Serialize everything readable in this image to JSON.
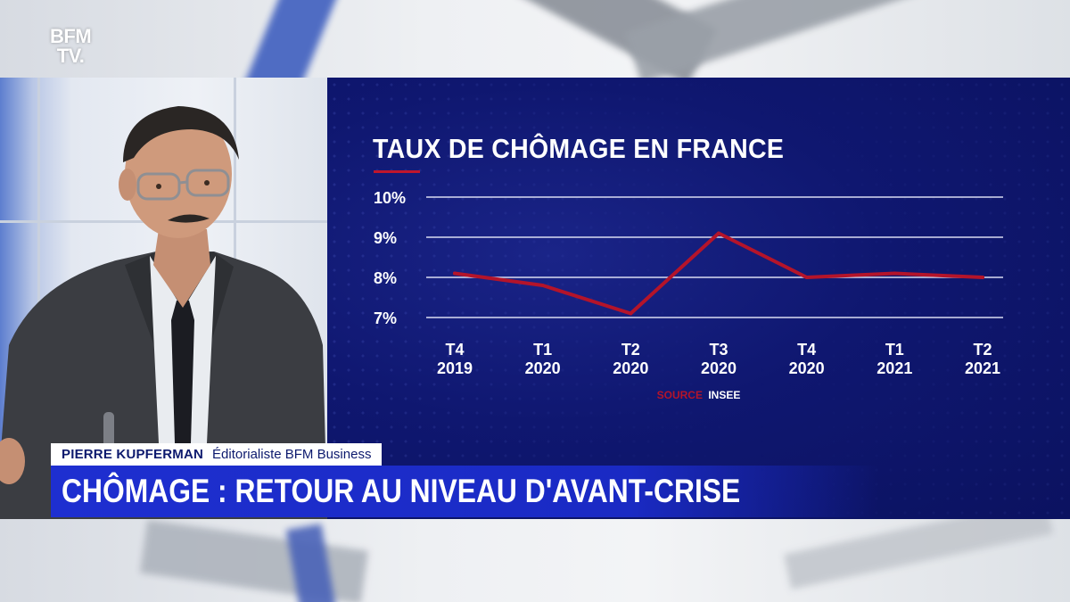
{
  "channel": {
    "logo_line1": "BFM",
    "logo_line2": "TV."
  },
  "lower_third": {
    "name": "PIERRE KUPFERMAN",
    "role": "Éditorialiste BFM Business",
    "headline": "CHÔMAGE : RETOUR AU NIVEAU D'AVANT-CRISE"
  },
  "colors": {
    "panel_blue": "#0f1770",
    "line_red": "#b4142a",
    "headline_blue": "#1e2fd0"
  },
  "chart_data": {
    "type": "line",
    "title": "TAUX DE CHÔMAGE EN FRANCE",
    "categories": [
      [
        "T4",
        "2019"
      ],
      [
        "T1",
        "2020"
      ],
      [
        "T2",
        "2020"
      ],
      [
        "T3",
        "2020"
      ],
      [
        "T4",
        "2020"
      ],
      [
        "T1",
        "2021"
      ],
      [
        "T2",
        "2021"
      ]
    ],
    "values": [
      8.1,
      7.8,
      7.1,
      9.1,
      8.0,
      8.1,
      8.0
    ],
    "y_ticks": [
      {
        "value": 10,
        "label": "10%"
      },
      {
        "value": 9,
        "label": "9%"
      },
      {
        "value": 8,
        "label": "8%"
      },
      {
        "value": 7,
        "label": "7%"
      }
    ],
    "ylim": [
      7,
      10
    ],
    "grid": true,
    "source_label": "SOURCE",
    "source_value": "INSEE"
  }
}
